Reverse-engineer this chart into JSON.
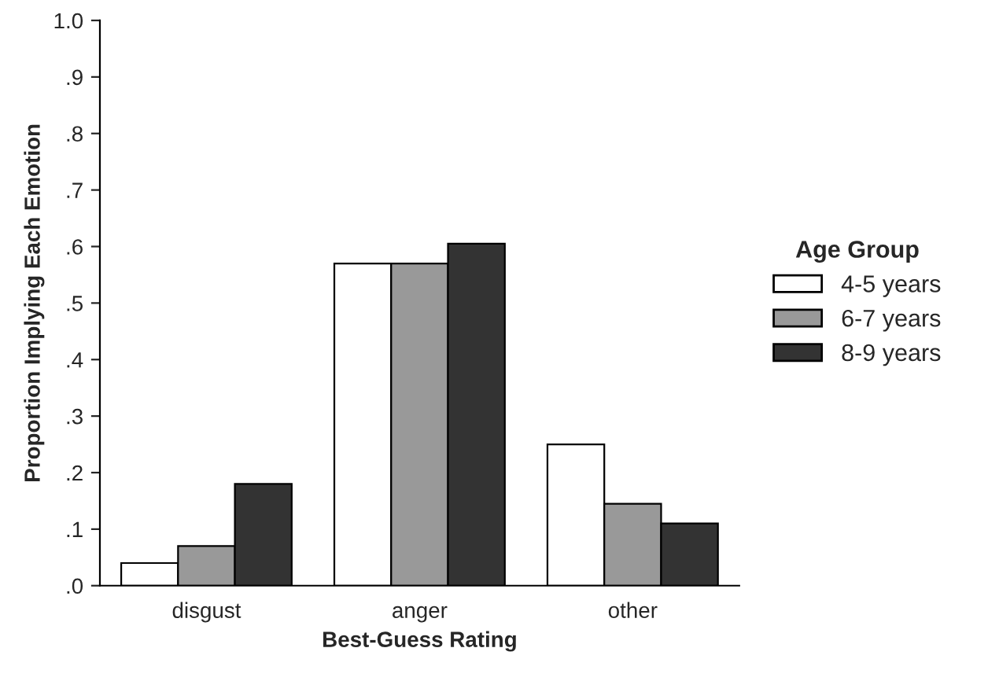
{
  "chart_data": {
    "type": "bar",
    "xlabel": "Best-Guess Rating",
    "ylabel": "Proportion Implying Each Emotion",
    "legend_title": "Age Group",
    "categories": [
      "disgust",
      "anger",
      "other"
    ],
    "series": [
      {
        "name": "4-5 years",
        "color": "#ffffff",
        "values": [
          0.04,
          0.57,
          0.25
        ]
      },
      {
        "name": "6-7 years",
        "color": "#999999",
        "values": [
          0.07,
          0.57,
          0.145
        ]
      },
      {
        "name": "8-9 years",
        "color": "#333333",
        "values": [
          0.18,
          0.605,
          0.11
        ]
      }
    ],
    "ylim": [
      0,
      1.0
    ],
    "yticks": [
      {
        "value": 0,
        "label": ".0"
      },
      {
        "value": 0.1,
        "label": ".1"
      },
      {
        "value": 0.2,
        "label": ".2"
      },
      {
        "value": 0.3,
        "label": ".3"
      },
      {
        "value": 0.4,
        "label": ".4"
      },
      {
        "value": 0.5,
        "label": ".5"
      },
      {
        "value": 0.6,
        "label": ".6"
      },
      {
        "value": 0.7,
        "label": ".7"
      },
      {
        "value": 0.8,
        "label": ".8"
      },
      {
        "value": 0.9,
        "label": ".9"
      },
      {
        "value": 1.0,
        "label": "1.0"
      }
    ],
    "grid": false,
    "legend": "right"
  }
}
